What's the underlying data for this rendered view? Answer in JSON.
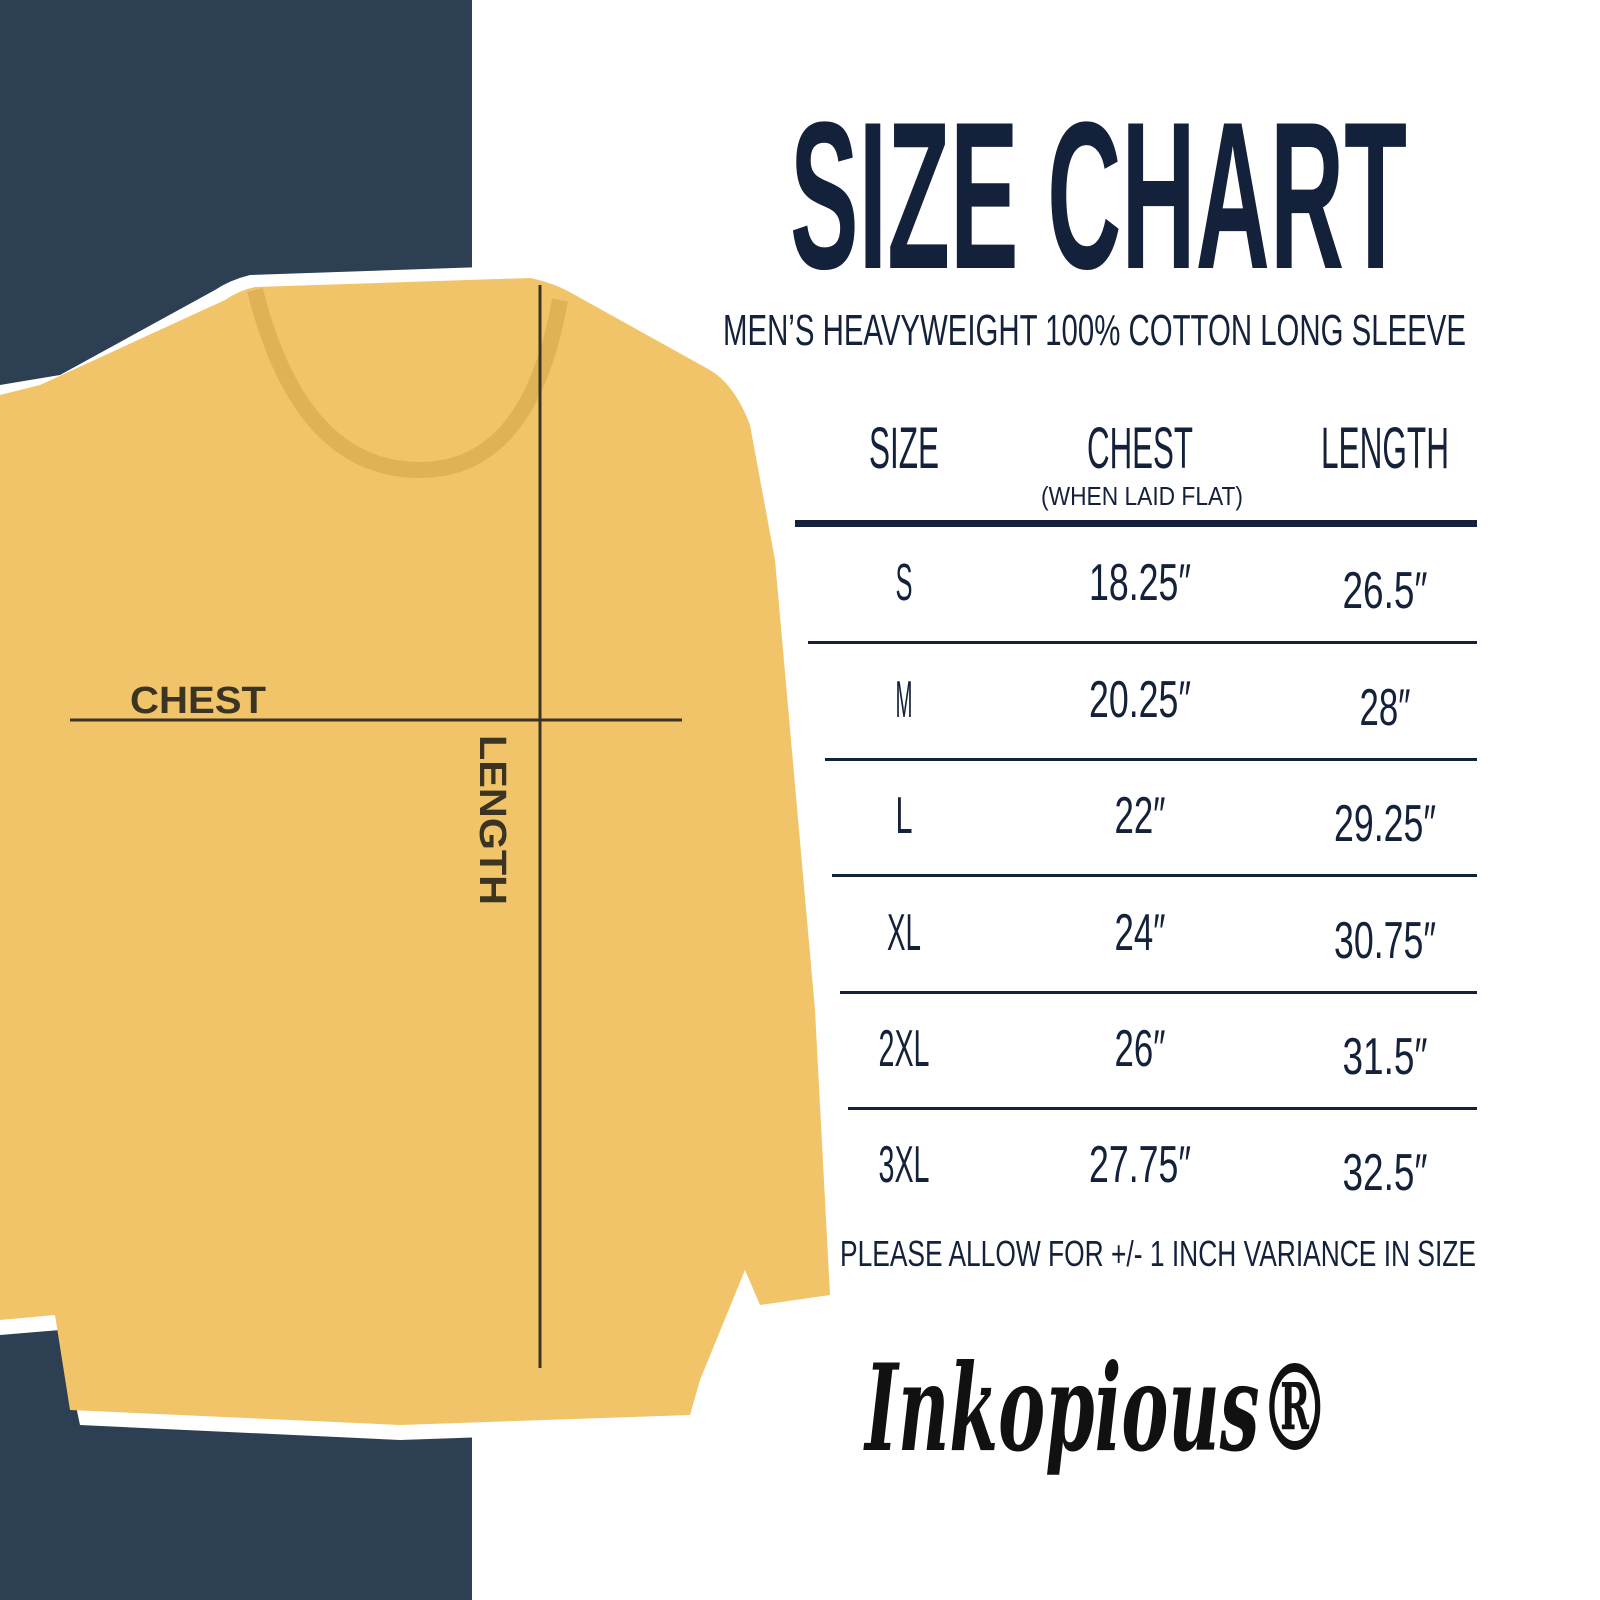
{
  "colors": {
    "panel": "#2d4053",
    "shirt": "#f1c46a",
    "ink": "#14213a",
    "label_ink": "#3b3422"
  },
  "title": "SIZE CHART",
  "subtitle": "MEN’S HEAVYWEIGHT 100% COTTON LONG SLEEVE",
  "shirt_labels": {
    "chest": "CHEST",
    "length": "LENGTH"
  },
  "table": {
    "headers": [
      {
        "label": "SIZE",
        "note": ""
      },
      {
        "label": "CHEST",
        "note": "(WHEN LAID FLAT)"
      },
      {
        "label": "LENGTH",
        "note": ""
      }
    ],
    "rows": [
      {
        "size": "S",
        "chest": "18.25″",
        "length": "26.5″"
      },
      {
        "size": "M",
        "chest": "20.25″",
        "length": "28″"
      },
      {
        "size": "L",
        "chest": "22″",
        "length": "29.25″"
      },
      {
        "size": "XL",
        "chest": "24″",
        "length": "30.75″"
      },
      {
        "size": "2XL",
        "chest": "26″",
        "length": "31.5″"
      },
      {
        "size": "3XL",
        "chest": "27.75″",
        "length": "32.5″"
      }
    ]
  },
  "footnote": "PLEASE ALLOW FOR +/- 1 INCH VARIANCE IN SIZE",
  "logo": "Inkopious®"
}
